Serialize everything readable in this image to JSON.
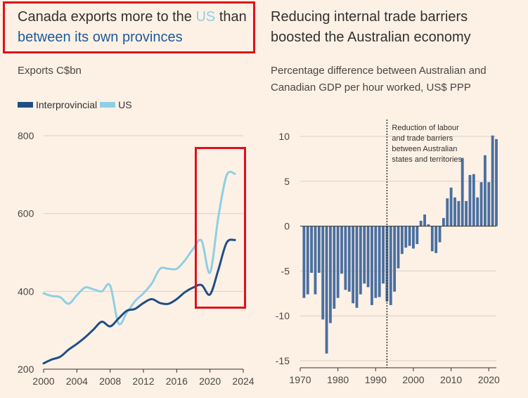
{
  "colors": {
    "background": "#fdf1e6",
    "interprovincial": "#1f4e85",
    "us": "#8fcfe4",
    "bar": "#4a6fa0",
    "highlight_box": "#e0101a",
    "grid": "#d9cfc4",
    "text": "#33302e"
  },
  "left": {
    "title_part1": "Canada exports more to the ",
    "title_us": "US",
    "title_part2": " than",
    "title_line2": "between its own provinces",
    "subtitle": "Exports C$bn",
    "legend": [
      {
        "label": "Interprovincial",
        "color": "#1f4e85"
      },
      {
        "label": "US",
        "color": "#8fcfe4"
      }
    ]
  },
  "right": {
    "title_line1": "Reducing internal trade barriers",
    "title_line2": "boosted the Australian economy",
    "subtitle_line1": "Percentage difference between Australian and",
    "subtitle_line2": "Canadian GDP per hour worked, US$ PPP",
    "annotation": [
      "Reduction of labour",
      "and trade barriers",
      "between Australian",
      "states and territories"
    ]
  },
  "chart_data": [
    {
      "type": "line",
      "title": "Canada exports more to the US than between its own provinces",
      "ylabel": "Exports C$bn",
      "xlim": [
        2000,
        2024
      ],
      "ylim": [
        200,
        800
      ],
      "xticks": [
        2000,
        2004,
        2008,
        2012,
        2016,
        2020,
        2024
      ],
      "yticks": [
        200,
        400,
        600,
        800
      ],
      "grid": true,
      "legend_position": "top-left",
      "series": [
        {
          "name": "Interprovincial",
          "x": [
            2000,
            2001,
            2002,
            2003,
            2004,
            2005,
            2006,
            2007,
            2008,
            2009,
            2010,
            2011,
            2012,
            2013,
            2014,
            2015,
            2016,
            2017,
            2018,
            2019,
            2020,
            2021,
            2022,
            2023
          ],
          "y": [
            215,
            225,
            232,
            250,
            265,
            282,
            302,
            322,
            310,
            330,
            350,
            355,
            370,
            380,
            370,
            368,
            380,
            398,
            410,
            416,
            392,
            455,
            525,
            532
          ]
        },
        {
          "name": "US",
          "x": [
            2000,
            2001,
            2002,
            2003,
            2004,
            2005,
            2006,
            2007,
            2008,
            2009,
            2010,
            2011,
            2012,
            2013,
            2014,
            2015,
            2016,
            2017,
            2018,
            2019,
            2020,
            2021,
            2022,
            2023
          ],
          "y": [
            395,
            388,
            385,
            368,
            390,
            410,
            405,
            400,
            415,
            318,
            345,
            375,
            395,
            420,
            458,
            458,
            458,
            480,
            510,
            530,
            448,
            590,
            698,
            702
          ]
        }
      ]
    },
    {
      "type": "bar",
      "title": "Reducing internal trade barriers boosted the Australian economy",
      "ylabel": "Percentage difference between Australian and Canadian GDP per hour worked, US$ PPP",
      "xlim": [
        1970,
        2022
      ],
      "ylim": [
        -15,
        10
      ],
      "xticks": [
        1970,
        1980,
        1990,
        2000,
        2010,
        2020
      ],
      "yticks": [
        -15,
        -10,
        -5,
        0,
        5,
        10
      ],
      "grid": true,
      "annotation_year": 1993,
      "annotation": "Reduction of labour and trade barriers between Australian states and territories",
      "years": [
        1971,
        1972,
        1973,
        1974,
        1975,
        1976,
        1977,
        1978,
        1979,
        1980,
        1981,
        1982,
        1983,
        1984,
        1985,
        1986,
        1987,
        1988,
        1989,
        1990,
        1991,
        1992,
        1993,
        1994,
        1995,
        1996,
        1997,
        1998,
        1999,
        2000,
        2001,
        2002,
        2003,
        2004,
        2005,
        2006,
        2007,
        2008,
        2009,
        2010,
        2011,
        2012,
        2013,
        2014,
        2015,
        2016,
        2017,
        2018,
        2019,
        2020,
        2021,
        2022
      ],
      "values": [
        -8.0,
        -7.6,
        -5.2,
        -7.6,
        -5.2,
        -10.4,
        -14.2,
        -10.8,
        -9.2,
        -8.0,
        -5.3,
        -7.1,
        -7.3,
        -8.6,
        -9.1,
        -7.6,
        -6.4,
        -6.8,
        -8.8,
        -8.0,
        -7.9,
        -6.4,
        -8.4,
        -8.8,
        -7.3,
        -4.7,
        -3.1,
        -2.4,
        -2.2,
        -2.5,
        -2.0,
        0.6,
        1.3,
        0.2,
        -2.8,
        -3.0,
        -1.8,
        0.9,
        3.1,
        4.3,
        3.2,
        2.8,
        7.6,
        2.8,
        5.7,
        5.8,
        3.2,
        4.9,
        7.9,
        4.9,
        10.1,
        9.7
      ]
    }
  ]
}
